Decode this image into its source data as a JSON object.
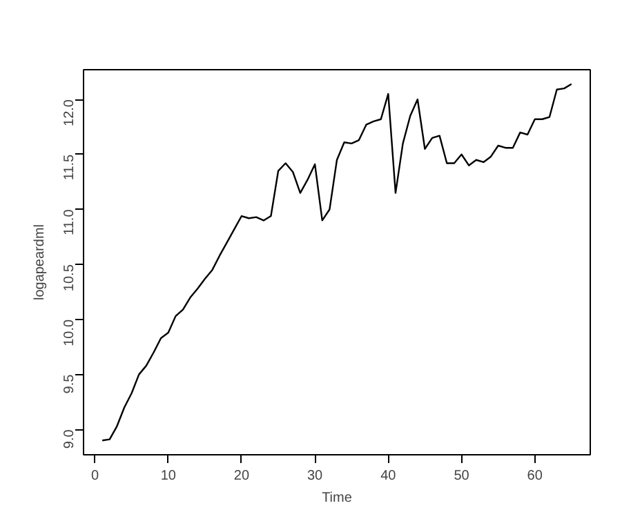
{
  "chart_data": {
    "type": "line",
    "xlabel": "Time",
    "ylabel": "logapeardml",
    "x": [
      1,
      2,
      3,
      4,
      5,
      6,
      7,
      8,
      9,
      10,
      11,
      12,
      13,
      14,
      15,
      16,
      17,
      18,
      19,
      20,
      21,
      22,
      23,
      24,
      25,
      26,
      27,
      28,
      29,
      30,
      31,
      32,
      33,
      34,
      35,
      36,
      37,
      38,
      39,
      40,
      41,
      42,
      43,
      44,
      45,
      46,
      47,
      48,
      49,
      50,
      51,
      52,
      53,
      54,
      55,
      56,
      57,
      58,
      59,
      60,
      61,
      62,
      63,
      64,
      65
    ],
    "series": [
      {
        "color": "#000000",
        "values": [
          8.9,
          8.91,
          9.03,
          9.2,
          9.33,
          9.5,
          9.58,
          9.7,
          9.83,
          9.88,
          10.03,
          10.09,
          10.2,
          10.28,
          10.37,
          10.45,
          10.58,
          10.7,
          10.82,
          10.94,
          10.92,
          10.93,
          10.9,
          10.94,
          11.35,
          11.42,
          11.34,
          11.15,
          11.27,
          11.41,
          10.9,
          11.0,
          11.45,
          11.61,
          11.6,
          11.63,
          11.77,
          11.8,
          11.82,
          12.05,
          11.15,
          11.6,
          11.85,
          12.0,
          11.55,
          11.65,
          11.67,
          11.42,
          11.42,
          11.5,
          11.4,
          11.45,
          11.43,
          11.48,
          11.58,
          11.56,
          11.56,
          11.7,
          11.68,
          11.82,
          11.82,
          11.84,
          12.09,
          12.1,
          12.14
        ]
      }
    ],
    "xlim": [
      -1.56,
      67.56
    ],
    "ylim": [
      8.77,
      12.27
    ],
    "xticks": [
      0,
      10,
      20,
      30,
      40,
      50,
      60
    ],
    "yticks": [
      {
        "value": 9,
        "label": "9.0"
      },
      {
        "value": 9.5,
        "label": "9.5"
      },
      {
        "value": 10,
        "label": "10.0"
      },
      {
        "value": 10.5,
        "label": "10.5"
      },
      {
        "value": 11,
        "label": "11.0"
      },
      {
        "value": 11.5,
        "label": "11.5"
      },
      {
        "value": 12,
        "label": "12.0"
      }
    ],
    "grid": false,
    "line_style": "solid"
  }
}
